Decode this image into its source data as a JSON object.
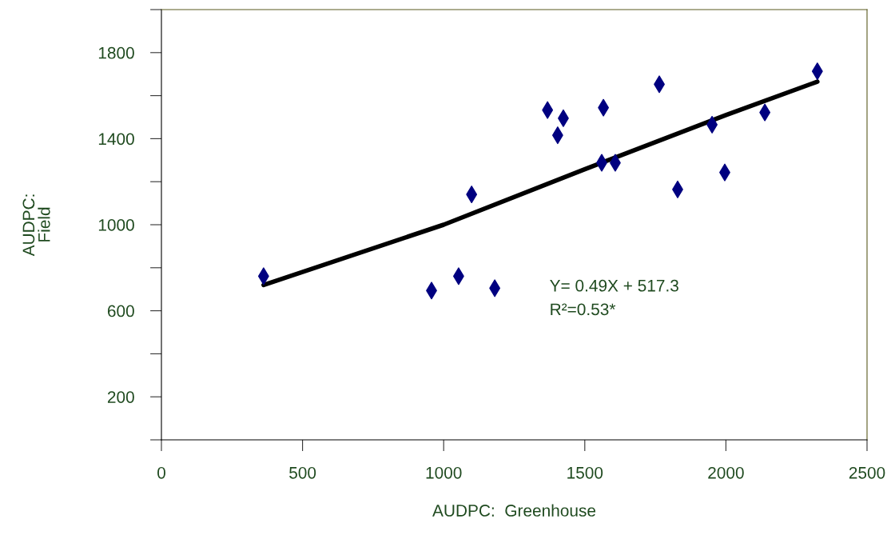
{
  "chart_data": {
    "type": "scatter",
    "xlabel": "AUDPC:  Greenhouse",
    "ylabel": "AUDPC:\nField",
    "annotations": [
      "Y= 0.49X + 517.3",
      "R²=0.53*"
    ],
    "xlim": [
      0,
      2500
    ],
    "xticks": [
      0,
      500,
      1000,
      1500,
      2000,
      2500
    ],
    "ylim": [
      0,
      2000
    ],
    "yticks": [
      {
        "value": 0,
        "label": null
      },
      200,
      {
        "value": 400,
        "label": null
      },
      600,
      {
        "value": 800,
        "label": null
      },
      1000,
      {
        "value": 1200,
        "label": null
      },
      1400,
      {
        "value": 1600,
        "label": null
      },
      1800,
      {
        "value": 2000,
        "label": null
      }
    ],
    "grid": false,
    "legend": false,
    "series": [
      {
        "marker": "diamond",
        "color": "#000080",
        "x": [
          362,
          957,
          1053,
          1181,
          1099,
          1368,
          1424,
          1404,
          1566,
          1560,
          1608,
          1764,
          1829,
          1951,
          1996,
          2138,
          2324
        ],
        "values": [
          761,
          694,
          761,
          705,
          1141,
          1533,
          1495,
          1416,
          1544,
          1288,
          1288,
          1653,
          1164,
          1465,
          1243,
          1522,
          1713
        ]
      },
      {
        "type": "line",
        "marker": "none",
        "color": "#000000",
        "x": [
          362,
          1000,
          1500,
          2000,
          2324
        ],
        "values": [
          720,
          1000,
          1258,
          1510,
          1665
        ]
      }
    ]
  }
}
